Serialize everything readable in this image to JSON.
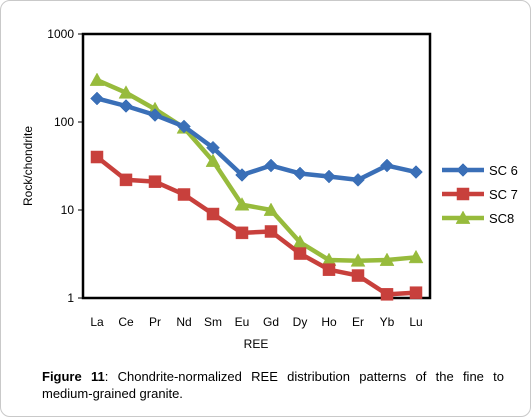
{
  "chart_data": {
    "type": "line",
    "title": "",
    "xlabel": "REE",
    "ylabel": "Rock/chondrite",
    "yscale": "log",
    "ylim": [
      1,
      1000
    ],
    "y_ticks": [
      "1",
      "10",
      "100",
      "1000"
    ],
    "grid": false,
    "legend_position": "right",
    "categories": [
      "La",
      "Ce",
      "Pr",
      "Nd",
      "Sm",
      "Eu",
      "Gd",
      "Dy",
      "Ho",
      "Er",
      "Yb",
      "Lu"
    ],
    "series": [
      {
        "name": "SC 6",
        "marker": "diamond",
        "color": "#3a6fb7",
        "values": [
          185,
          152,
          120,
          89,
          51,
          25,
          32,
          26,
          24,
          22,
          32,
          27
        ]
      },
      {
        "name": "SC 7",
        "marker": "square",
        "color": "#c8403c",
        "values": [
          40,
          22,
          21,
          15,
          9,
          5.5,
          5.7,
          3.2,
          2.1,
          1.8,
          1.1,
          1.15
        ]
      },
      {
        "name": "SC8",
        "marker": "triangle",
        "color": "#97bb3c",
        "values": [
          300,
          215,
          140,
          86,
          36,
          11.5,
          10,
          4.3,
          2.7,
          2.65,
          2.7,
          2.9
        ]
      }
    ]
  },
  "caption": {
    "figure_label": "Figure 11",
    "text": ": Chondrite-normalized REE distribution patterns of the fine to medium-grained granite."
  }
}
